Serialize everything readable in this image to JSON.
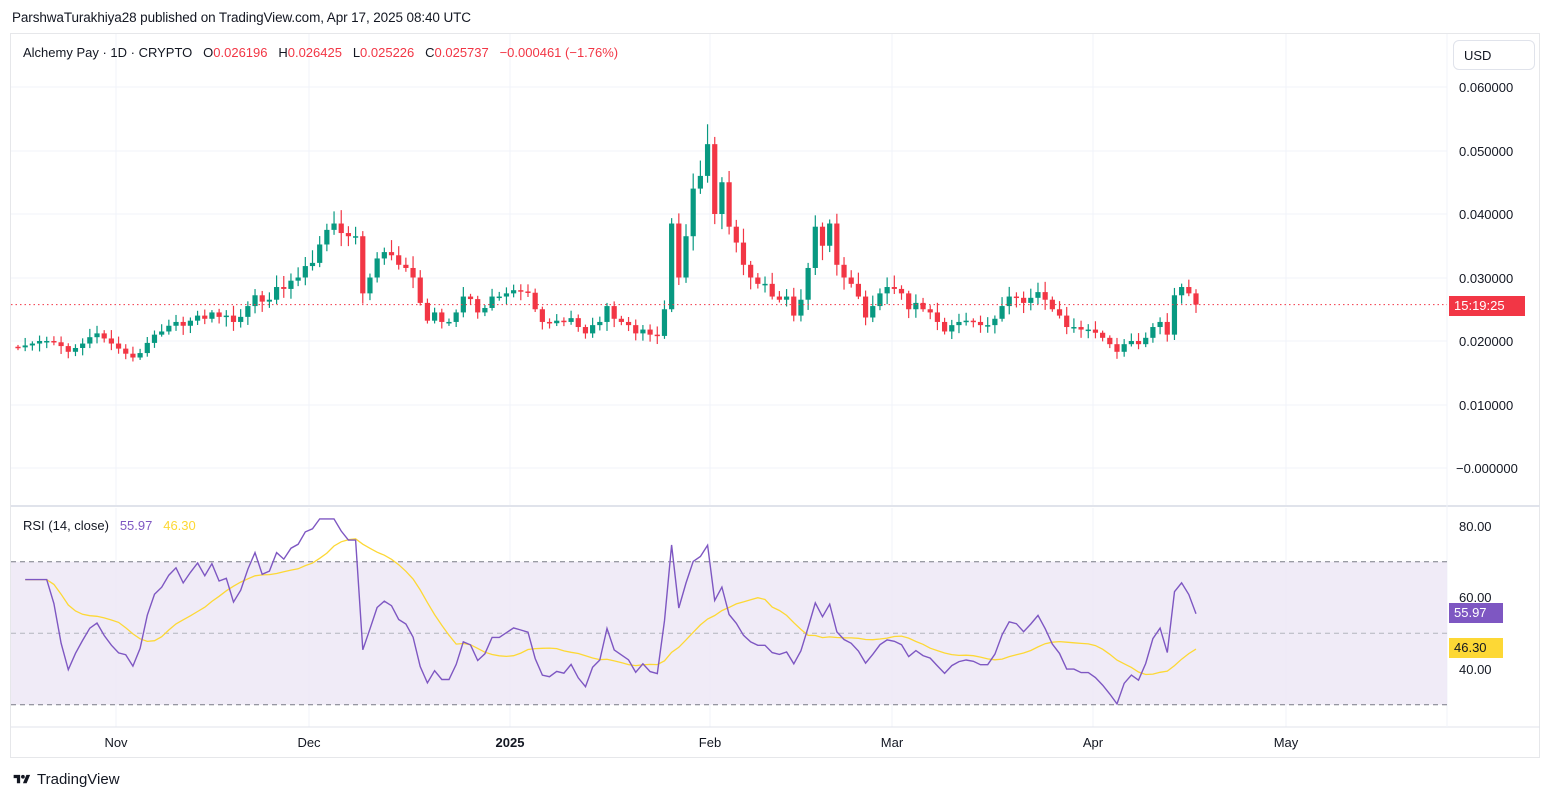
{
  "header": {
    "published_line": "ParshwaTurakhiya28 published on TradingView.com, Apr 17, 2025 08:40 UTC"
  },
  "legend": {
    "symbol": "Alchemy Pay · 1D · CRYPTO",
    "open_label": "O",
    "open": "0.026196",
    "high_label": "H",
    "high": "0.026425",
    "low_label": "L",
    "low": "0.025226",
    "close_label": "C",
    "close": "0.025737",
    "change": "−0.000461 (−1.76%)"
  },
  "currency": "USD",
  "countdown": "15:19:25",
  "rsi_legend": {
    "label": "RSI (14, close)",
    "rsi": "55.97",
    "ma": "46.30"
  },
  "brand": {
    "name": "TradingView"
  },
  "colors": {
    "up": "#089981",
    "down": "#f23645",
    "rsi": "#7e57c2",
    "rsi_ma": "#fdd835",
    "rsi_band": "#ede7f6",
    "grid": "#f0f3fa",
    "price_line": "#f23645"
  },
  "chart_data": [
    {
      "type": "candlestick",
      "title": "Alchemy Pay · 1D · CRYPTO",
      "ylabel": "USD",
      "ylim": [
        -0.006,
        0.066
      ],
      "y_ticks": [
        "0.060000",
        "0.050000",
        "0.040000",
        "0.030000",
        "0.020000",
        "0.010000",
        "−0.000000"
      ],
      "x_ticks": [
        "Nov",
        "Dec",
        "2025",
        "Feb",
        "Mar",
        "Apr",
        "May"
      ],
      "last_price": 0.025737,
      "grid": true,
      "closes": [
        0.019,
        0.0193,
        0.0196,
        0.02,
        0.02,
        0.0198,
        0.0192,
        0.0183,
        0.0189,
        0.0196,
        0.0206,
        0.0212,
        0.0204,
        0.0196,
        0.0188,
        0.018,
        0.0174,
        0.0181,
        0.0197,
        0.021,
        0.0215,
        0.0224,
        0.023,
        0.0224,
        0.0232,
        0.024,
        0.0235,
        0.0245,
        0.0238,
        0.024,
        0.023,
        0.0238,
        0.0255,
        0.0272,
        0.0262,
        0.0265,
        0.0285,
        0.0282,
        0.0295,
        0.03,
        0.0318,
        0.0323,
        0.0352,
        0.0375,
        0.0385,
        0.037,
        0.0365,
        0.0365,
        0.0275,
        0.03,
        0.033,
        0.034,
        0.0335,
        0.032,
        0.0315,
        0.03,
        0.026,
        0.0232,
        0.0245,
        0.023,
        0.023,
        0.0245,
        0.027,
        0.0266,
        0.0245,
        0.0252,
        0.027,
        0.027,
        0.0275,
        0.028,
        0.0278,
        0.0276,
        0.025,
        0.023,
        0.0228,
        0.0232,
        0.023,
        0.0236,
        0.0222,
        0.0212,
        0.0225,
        0.023,
        0.0255,
        0.0235,
        0.023,
        0.0225,
        0.0212,
        0.0218,
        0.021,
        0.0208,
        0.025,
        0.0385,
        0.03,
        0.0365,
        0.044,
        0.046,
        0.051,
        0.04,
        0.045,
        0.038,
        0.0355,
        0.032,
        0.03,
        0.029,
        0.029,
        0.027,
        0.0265,
        0.027,
        0.024,
        0.0265,
        0.0315,
        0.038,
        0.035,
        0.0385,
        0.032,
        0.03,
        0.029,
        0.027,
        0.0237,
        0.0255,
        0.0275,
        0.0285,
        0.0282,
        0.0275,
        0.025,
        0.026,
        0.025,
        0.0245,
        0.023,
        0.0215,
        0.0225,
        0.023,
        0.0232,
        0.023,
        0.0225,
        0.0225,
        0.0235,
        0.0255,
        0.027,
        0.0268,
        0.026,
        0.0268,
        0.0277,
        0.0265,
        0.025,
        0.024,
        0.0222,
        0.0222,
        0.0218,
        0.0218,
        0.0213,
        0.0205,
        0.0195,
        0.0183,
        0.0195,
        0.02,
        0.0195,
        0.0205,
        0.0222,
        0.023,
        0.021,
        0.0272,
        0.0285,
        0.0275,
        0.025737
      ],
      "rsi_series": {
        "name": "RSI (14, close)",
        "ylim": [
          25,
          85
        ],
        "y_ticks": [
          "80.00",
          "60.00",
          "40.00"
        ],
        "bands": {
          "upper": 70,
          "middle": 50,
          "lower": 30
        },
        "last_value": 55.97,
        "ma_last_value": 46.3
      }
    }
  ]
}
